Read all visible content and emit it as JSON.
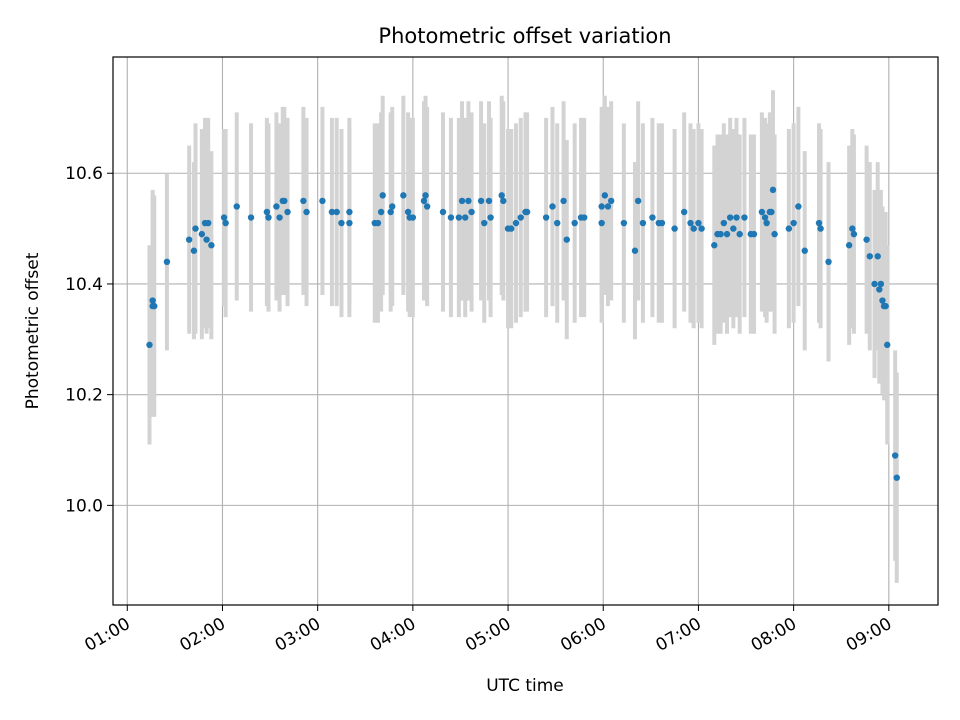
{
  "chart_data": {
    "type": "scatter",
    "title": "Photometric offset variation",
    "xlabel": "UTC time",
    "ylabel": "Photometric offset",
    "xlim": [
      "00:51",
      "09:31"
    ],
    "ylim": [
      9.82,
      10.81
    ],
    "x_ticks": [
      "01:00",
      "02:00",
      "03:00",
      "04:00",
      "05:00",
      "06:00",
      "07:00",
      "08:00",
      "09:00"
    ],
    "y_ticks": [
      "10.0",
      "10.2",
      "10.4",
      "10.6"
    ],
    "grid": true,
    "colors": {
      "points": "#1f77b4",
      "errorbars": "#d3d3d3",
      "grid": "#b0b0b0"
    },
    "series": [
      {
        "columns": [
          "time",
          "offset",
          "error"
        ],
        "points": [
          [
            "01:14",
            10.29,
            0.18
          ],
          [
            "01:16",
            10.37,
            0.2
          ],
          [
            "01:16",
            10.36,
            0.2
          ],
          [
            "01:17",
            10.36,
            0.2
          ],
          [
            "01:25",
            10.44,
            0.16
          ],
          [
            "01:39",
            10.48,
            0.17
          ],
          [
            "01:42",
            10.46,
            0.16
          ],
          [
            "01:43",
            10.5,
            0.19
          ],
          [
            "01:47",
            10.49,
            0.19
          ],
          [
            "01:49",
            10.51,
            0.19
          ],
          [
            "01:50",
            10.48,
            0.17
          ],
          [
            "01:51",
            10.51,
            0.19
          ],
          [
            "01:53",
            10.47,
            0.17
          ],
          [
            "02:01",
            10.52,
            0.16
          ],
          [
            "02:02",
            10.51,
            0.17
          ],
          [
            "02:09",
            10.54,
            0.17
          ],
          [
            "02:18",
            10.52,
            0.17
          ],
          [
            "02:28",
            10.53,
            0.17
          ],
          [
            "02:29",
            10.52,
            0.17
          ],
          [
            "02:34",
            10.54,
            0.17
          ],
          [
            "02:36",
            10.52,
            0.17
          ],
          [
            "02:38",
            10.55,
            0.17
          ],
          [
            "02:39",
            10.55,
            0.17
          ],
          [
            "02:41",
            10.53,
            0.17
          ],
          [
            "02:51",
            10.55,
            0.17
          ],
          [
            "02:53",
            10.53,
            0.17
          ],
          [
            "03:03",
            10.55,
            0.17
          ],
          [
            "03:09",
            10.53,
            0.17
          ],
          [
            "03:12",
            10.53,
            0.17
          ],
          [
            "03:15",
            10.51,
            0.17
          ],
          [
            "03:20",
            10.53,
            0.17
          ],
          [
            "03:20",
            10.51,
            0.17
          ],
          [
            "03:36",
            10.51,
            0.18
          ],
          [
            "03:38",
            10.51,
            0.18
          ],
          [
            "03:40",
            10.53,
            0.18
          ],
          [
            "03:41",
            10.56,
            0.18
          ],
          [
            "03:46",
            10.53,
            0.18
          ],
          [
            "03:47",
            10.54,
            0.18
          ],
          [
            "03:54",
            10.56,
            0.18
          ],
          [
            "03:57",
            10.53,
            0.18
          ],
          [
            "03:58",
            10.52,
            0.18
          ],
          [
            "04:00",
            10.52,
            0.18
          ],
          [
            "04:07",
            10.55,
            0.18
          ],
          [
            "04:08",
            10.56,
            0.18
          ],
          [
            "04:09",
            10.54,
            0.18
          ],
          [
            "04:19",
            10.53,
            0.18
          ],
          [
            "04:24",
            10.52,
            0.18
          ],
          [
            "04:29",
            10.52,
            0.18
          ],
          [
            "04:31",
            10.55,
            0.18
          ],
          [
            "04:33",
            10.52,
            0.18
          ],
          [
            "04:35",
            10.55,
            0.18
          ],
          [
            "04:37",
            10.53,
            0.18
          ],
          [
            "04:43",
            10.55,
            0.18
          ],
          [
            "04:45",
            10.51,
            0.18
          ],
          [
            "04:48",
            10.55,
            0.18
          ],
          [
            "04:49",
            10.52,
            0.18
          ],
          [
            "04:56",
            10.56,
            0.18
          ],
          [
            "04:57",
            10.55,
            0.18
          ],
          [
            "05:00",
            10.5,
            0.18
          ],
          [
            "05:02",
            10.5,
            0.18
          ],
          [
            "05:05",
            10.51,
            0.18
          ],
          [
            "05:08",
            10.52,
            0.18
          ],
          [
            "05:11",
            10.53,
            0.18
          ],
          [
            "05:12",
            10.53,
            0.18
          ],
          [
            "05:24",
            10.52,
            0.18
          ],
          [
            "05:28",
            10.54,
            0.18
          ],
          [
            "05:31",
            10.51,
            0.18
          ],
          [
            "05:35",
            10.55,
            0.18
          ],
          [
            "05:37",
            10.48,
            0.18
          ],
          [
            "05:42",
            10.51,
            0.18
          ],
          [
            "05:46",
            10.52,
            0.18
          ],
          [
            "05:48",
            10.52,
            0.18
          ],
          [
            "05:59",
            10.54,
            0.18
          ],
          [
            "05:59",
            10.51,
            0.18
          ],
          [
            "06:01",
            10.56,
            0.18
          ],
          [
            "06:03",
            10.54,
            0.18
          ],
          [
            "06:05",
            10.55,
            0.18
          ],
          [
            "06:13",
            10.51,
            0.18
          ],
          [
            "06:20",
            10.46,
            0.16
          ],
          [
            "06:22",
            10.55,
            0.18
          ],
          [
            "06:25",
            10.51,
            0.18
          ],
          [
            "06:31",
            10.52,
            0.18
          ],
          [
            "06:35",
            10.51,
            0.18
          ],
          [
            "06:37",
            10.51,
            0.18
          ],
          [
            "06:45",
            10.5,
            0.18
          ],
          [
            "06:51",
            10.53,
            0.18
          ],
          [
            "06:55",
            10.51,
            0.18
          ],
          [
            "06:57",
            10.5,
            0.18
          ],
          [
            "07:00",
            10.51,
            0.18
          ],
          [
            "07:02",
            10.5,
            0.18
          ],
          [
            "07:10",
            10.47,
            0.18
          ],
          [
            "07:12",
            10.49,
            0.18
          ],
          [
            "07:14",
            10.49,
            0.18
          ],
          [
            "07:16",
            10.51,
            0.18
          ],
          [
            "07:18",
            10.49,
            0.18
          ],
          [
            "07:20",
            10.52,
            0.18
          ],
          [
            "07:22",
            10.5,
            0.18
          ],
          [
            "07:24",
            10.52,
            0.18
          ],
          [
            "07:26",
            10.49,
            0.18
          ],
          [
            "07:29",
            10.52,
            0.18
          ],
          [
            "07:33",
            10.49,
            0.18
          ],
          [
            "07:35",
            10.49,
            0.18
          ],
          [
            "07:40",
            10.53,
            0.18
          ],
          [
            "07:42",
            10.52,
            0.18
          ],
          [
            "07:43",
            10.51,
            0.18
          ],
          [
            "07:45",
            10.53,
            0.18
          ],
          [
            "07:46",
            10.53,
            0.18
          ],
          [
            "07:47",
            10.57,
            0.18
          ],
          [
            "07:48",
            10.49,
            0.18
          ],
          [
            "07:57",
            10.5,
            0.18
          ],
          [
            "08:00",
            10.51,
            0.18
          ],
          [
            "08:03",
            10.54,
            0.18
          ],
          [
            "08:07",
            10.46,
            0.18
          ],
          [
            "08:16",
            10.51,
            0.18
          ],
          [
            "08:17",
            10.5,
            0.18
          ],
          [
            "08:22",
            10.44,
            0.18
          ],
          [
            "08:35",
            10.47,
            0.18
          ],
          [
            "08:37",
            10.5,
            0.18
          ],
          [
            "08:38",
            10.49,
            0.18
          ],
          [
            "08:46",
            10.48,
            0.17
          ],
          [
            "08:48",
            10.45,
            0.17
          ],
          [
            "08:51",
            10.4,
            0.17
          ],
          [
            "08:53",
            10.45,
            0.17
          ],
          [
            "08:54",
            10.39,
            0.17
          ],
          [
            "08:55",
            10.4,
            0.17
          ],
          [
            "08:56",
            10.37,
            0.17
          ],
          [
            "08:57",
            10.36,
            0.17
          ],
          [
            "08:58",
            10.36,
            0.17
          ],
          [
            "08:59",
            10.29,
            0.18
          ],
          [
            "09:04",
            10.09,
            0.19
          ],
          [
            "09:05",
            10.05,
            0.19
          ]
        ]
      }
    ]
  }
}
